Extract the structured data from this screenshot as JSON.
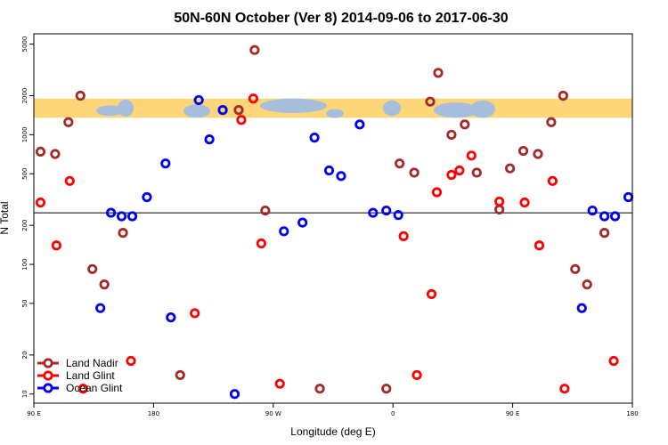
{
  "chart_data": {
    "type": "scatter",
    "title": "50N-60N October (Ver 8)   2014-09-06 to 2017-06-30",
    "xlabel": "Longitude (deg E)",
    "ylabel": "N Total",
    "x_scale": "linear",
    "y_scale": "log",
    "xlim": [
      90,
      540
    ],
    "ylim": [
      8.5,
      6000
    ],
    "x_ticks": [
      {
        "value": 90,
        "label": "90 E"
      },
      {
        "value": 180,
        "label": "180"
      },
      {
        "value": 270,
        "label": "90 W"
      },
      {
        "value": 360,
        "label": "0"
      },
      {
        "value": 450,
        "label": "90 E"
      },
      {
        "value": 540,
        "label": "180"
      }
    ],
    "y_ticks": [
      {
        "value": 10,
        "label": "10"
      },
      {
        "value": 20,
        "label": "20"
      },
      {
        "value": 50,
        "label": "50"
      },
      {
        "value": 100,
        "label": "100"
      },
      {
        "value": 200,
        "label": "200"
      },
      {
        "value": 500,
        "label": "500"
      },
      {
        "value": 1000,
        "label": "1000"
      },
      {
        "value": 2000,
        "label": "2000"
      },
      {
        "value": 5000,
        "label": "5000"
      }
    ],
    "reference_line": {
      "y": 250
    },
    "map_band": {
      "y_top": 1900,
      "y_bottom": 1350
    },
    "grid": false,
    "legend_position": "bottom-left",
    "colors": {
      "land_nadir": "#a52a2a",
      "land_glint": "#ff0000",
      "ocean_glint": "#0000ee",
      "map_ocean": "#a6bddb",
      "map_land": "#fdd67a"
    },
    "series": [
      {
        "name": "Land Nadir",
        "color": "#a52a2a",
        "points": [
          [
            95,
            740
          ],
          [
            106,
            710
          ],
          [
            116,
            1250
          ],
          [
            125,
            2000
          ],
          [
            134,
            92
          ],
          [
            143,
            70
          ],
          [
            157,
            175
          ],
          [
            200,
            14
          ],
          [
            244,
            1550
          ],
          [
            256,
            4500
          ],
          [
            264,
            260
          ],
          [
            305,
            11
          ],
          [
            355,
            11
          ],
          [
            365,
            600
          ],
          [
            376,
            510
          ],
          [
            388,
            1800
          ],
          [
            394,
            3000
          ],
          [
            404,
            1000
          ],
          [
            414,
            1200
          ],
          [
            423,
            510
          ],
          [
            440,
            265
          ],
          [
            448,
            550
          ],
          [
            458,
            750
          ],
          [
            469,
            710
          ],
          [
            479,
            1250
          ],
          [
            488,
            2000
          ],
          [
            497,
            92
          ],
          [
            506,
            70
          ],
          [
            519,
            175
          ]
        ]
      },
      {
        "name": "Land Glint",
        "color": "#ff0000",
        "points": [
          [
            95,
            300
          ],
          [
            107,
            140
          ],
          [
            117,
            440
          ],
          [
            127,
            11
          ],
          [
            163,
            18
          ],
          [
            211,
            42
          ],
          [
            246,
            1300
          ],
          [
            255,
            1900
          ],
          [
            261,
            145
          ],
          [
            275,
            12
          ],
          [
            368,
            165
          ],
          [
            378,
            14
          ],
          [
            389,
            59
          ],
          [
            393,
            360
          ],
          [
            404,
            490
          ],
          [
            410,
            530
          ],
          [
            419,
            690
          ],
          [
            440,
            305
          ],
          [
            459,
            300
          ],
          [
            470,
            140
          ],
          [
            480,
            440
          ],
          [
            489,
            11
          ],
          [
            526,
            18
          ]
        ]
      },
      {
        "name": "Ocean Glint",
        "color": "#0000ee",
        "points": [
          [
            140,
            46
          ],
          [
            148,
            250
          ],
          [
            156,
            235
          ],
          [
            164,
            235
          ],
          [
            175,
            330
          ],
          [
            189,
            600
          ],
          [
            193,
            39
          ],
          [
            214,
            1850
          ],
          [
            222,
            920
          ],
          [
            232,
            1550
          ],
          [
            241,
            10
          ],
          [
            278,
            180
          ],
          [
            292,
            210
          ],
          [
            301,
            950
          ],
          [
            312,
            530
          ],
          [
            321,
            480
          ],
          [
            335,
            1200
          ],
          [
            345,
            250
          ],
          [
            355,
            260
          ],
          [
            364,
            240
          ],
          [
            502,
            46
          ],
          [
            510,
            260
          ],
          [
            519,
            235
          ],
          [
            527,
            235
          ],
          [
            537,
            330
          ]
        ]
      }
    ]
  }
}
